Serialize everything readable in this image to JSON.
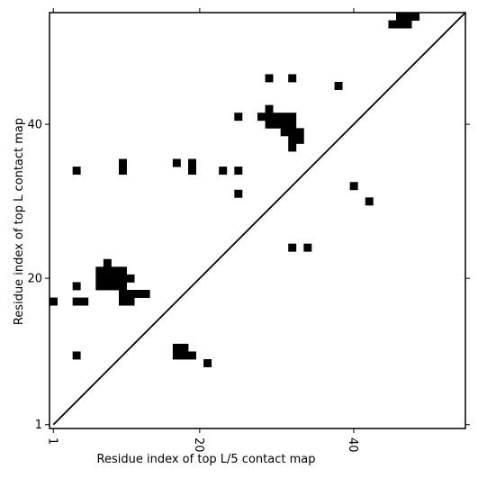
{
  "chart_data": {
    "type": "heatmap",
    "title": "",
    "xlabel": "Residue index of top L/5 contact map",
    "ylabel": "Residue index of top L contact map",
    "xlim": [
      0.5,
      54.5
    ],
    "ylim": [
      0.5,
      54.5
    ],
    "xticks": [
      1,
      20,
      40
    ],
    "yticks": [
      1,
      20,
      40
    ],
    "xtick_rotation": -90,
    "grid": false,
    "legend": "none",
    "diagonal": true,
    "cell_color": "#000000",
    "background_color": "#ffffff",
    "upper_cells": [
      [
        45,
        53
      ],
      [
        46,
        53
      ],
      [
        47,
        53
      ],
      [
        46,
        54
      ],
      [
        47,
        54
      ],
      [
        48,
        54
      ],
      [
        38,
        45
      ],
      [
        29,
        46
      ],
      [
        32,
        46
      ],
      [
        25,
        41
      ],
      [
        28,
        41
      ],
      [
        29,
        41
      ],
      [
        30,
        41
      ],
      [
        31,
        41
      ],
      [
        29,
        42
      ],
      [
        29,
        40
      ],
      [
        30,
        40
      ],
      [
        31,
        40
      ],
      [
        31,
        39
      ],
      [
        32,
        41
      ],
      [
        32,
        40
      ],
      [
        32,
        39
      ],
      [
        33,
        39
      ],
      [
        32,
        38
      ],
      [
        33,
        38
      ],
      [
        32,
        37
      ],
      [
        40,
        32
      ],
      [
        42,
        30
      ],
      [
        32,
        24
      ],
      [
        34,
        24
      ]
    ],
    "lower_cells": [
      [
        1,
        17
      ],
      [
        4,
        34
      ],
      [
        4,
        19
      ],
      [
        4,
        17
      ],
      [
        5,
        17
      ],
      [
        4,
        10
      ],
      [
        8,
        22
      ],
      [
        7,
        21
      ],
      [
        8,
        21
      ],
      [
        9,
        21
      ],
      [
        10,
        21
      ],
      [
        7,
        20
      ],
      [
        8,
        20
      ],
      [
        9,
        20
      ],
      [
        10,
        20
      ],
      [
        11,
        20
      ],
      [
        7,
        19
      ],
      [
        8,
        19
      ],
      [
        9,
        19
      ],
      [
        10,
        19
      ],
      [
        11,
        18
      ],
      [
        12,
        18
      ],
      [
        13,
        18
      ],
      [
        10,
        18
      ],
      [
        10,
        17
      ],
      [
        11,
        17
      ],
      [
        10,
        34
      ],
      [
        10,
        35
      ],
      [
        17,
        35
      ],
      [
        19,
        34
      ],
      [
        19,
        35
      ],
      [
        23,
        34
      ],
      [
        25,
        34
      ],
      [
        25,
        31
      ],
      [
        17,
        11
      ],
      [
        18,
        11
      ],
      [
        17,
        10
      ],
      [
        18,
        10
      ],
      [
        19,
        10
      ],
      [
        21,
        9
      ]
    ]
  }
}
